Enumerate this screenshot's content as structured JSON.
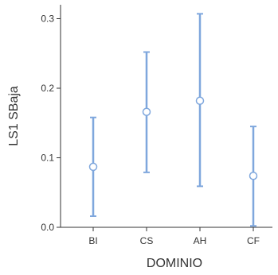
{
  "chart_data": {
    "type": "errorbar",
    "categories": [
      "BI",
      "CS",
      "AH",
      "CF"
    ],
    "series": [
      {
        "values": [
          0.087,
          0.166,
          0.182,
          0.074
        ],
        "lower": [
          0.016,
          0.079,
          0.059,
          0.002
        ],
        "upper": [
          0.158,
          0.252,
          0.307,
          0.145
        ]
      }
    ],
    "title": "",
    "xlabel": "DOMINIO",
    "ylabel": "LS1 SBaja",
    "ylim": [
      0.0,
      0.32
    ],
    "yticks": [
      "0.0",
      "0.1",
      "0.2",
      "0.3"
    ],
    "grid": false,
    "colors": {
      "series": "#7fa7dd",
      "axis": "#333333",
      "marker_fill": "#ffffff"
    }
  }
}
